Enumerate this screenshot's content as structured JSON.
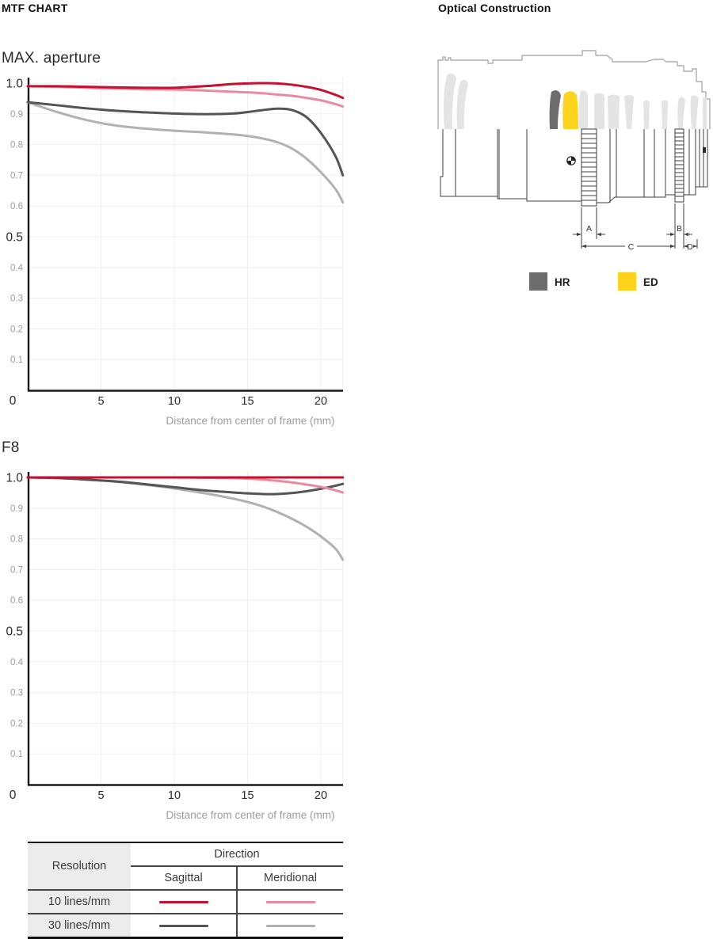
{
  "page": {
    "left_title": "MTF CHART",
    "right_title": "Optical Construction"
  },
  "chart_data": [
    {
      "type": "line",
      "title": "MAX. aperture",
      "xlabel": "Distance from center of frame (mm)",
      "xlim": [
        0,
        21.5
      ],
      "ylim": [
        0,
        1.0
      ],
      "xticks": [
        5,
        10,
        15,
        20
      ],
      "origin_label": "0",
      "yticks_major": [
        1.0,
        0.5
      ],
      "yticks_minor": [
        0.9,
        0.8,
        0.7,
        0.6,
        0.4,
        0.3,
        0.2,
        0.1
      ],
      "grid": true,
      "x": [
        0,
        2,
        4,
        6,
        8,
        10,
        12,
        14,
        15,
        16,
        17,
        18,
        19,
        20,
        21,
        21.5
      ],
      "series": [
        {
          "name": "10 lines/mm Sagittal",
          "color": "#c8102e",
          "values": [
            0.99,
            0.99,
            0.988,
            0.986,
            0.985,
            0.985,
            0.99,
            0.997,
            0.999,
            1.0,
            0.999,
            0.995,
            0.988,
            0.978,
            0.962,
            0.952
          ]
        },
        {
          "name": "10 lines/mm Meridional",
          "color": "#ea8a9e",
          "values": [
            0.99,
            0.988,
            0.985,
            0.982,
            0.98,
            0.979,
            0.976,
            0.972,
            0.97,
            0.967,
            0.963,
            0.959,
            0.952,
            0.944,
            0.932,
            0.924
          ]
        },
        {
          "name": "30 lines/mm Sagittal",
          "color": "#545457",
          "values": [
            0.938,
            0.928,
            0.918,
            0.91,
            0.905,
            0.901,
            0.899,
            0.901,
            0.906,
            0.912,
            0.917,
            0.913,
            0.89,
            0.838,
            0.762,
            0.7
          ]
        },
        {
          "name": "30 lines/mm Meridional",
          "color": "#b1b1b1",
          "values": [
            0.938,
            0.906,
            0.88,
            0.862,
            0.852,
            0.845,
            0.84,
            0.833,
            0.828,
            0.82,
            0.808,
            0.788,
            0.755,
            0.71,
            0.655,
            0.612
          ]
        }
      ]
    },
    {
      "type": "line",
      "title": "F8",
      "xlabel": "Distance from center of frame (mm)",
      "xlim": [
        0,
        21.5
      ],
      "ylim": [
        0,
        1.0
      ],
      "xticks": [
        5,
        10,
        15,
        20
      ],
      "origin_label": "0",
      "yticks_major": [
        1.0,
        0.5
      ],
      "yticks_minor": [
        0.9,
        0.8,
        0.7,
        0.6,
        0.4,
        0.3,
        0.2,
        0.1
      ],
      "grid": true,
      "x": [
        0,
        2,
        4,
        6,
        8,
        10,
        12,
        14,
        15,
        16,
        17,
        18,
        19,
        20,
        21,
        21.5
      ],
      "series": [
        {
          "name": "10 lines/mm Sagittal",
          "color": "#c8102e",
          "values": [
            1.0,
            1.0,
            1.0,
            1.0,
            1.0,
            1.0,
            1.0,
            1.0,
            1.0,
            1.0,
            1.0,
            1.0,
            1.0,
            1.0,
            1.0,
            1.0
          ]
        },
        {
          "name": "10 lines/mm Meridional",
          "color": "#ea8a9e",
          "values": [
            1.0,
            1.0,
            1.0,
            1.0,
            1.0,
            1.0,
            0.999,
            0.998,
            0.996,
            0.993,
            0.989,
            0.984,
            0.977,
            0.969,
            0.958,
            0.951
          ]
        },
        {
          "name": "30 lines/mm Sagittal",
          "color": "#545457",
          "values": [
            1.0,
            0.998,
            0.993,
            0.987,
            0.978,
            0.968,
            0.958,
            0.951,
            0.948,
            0.946,
            0.946,
            0.949,
            0.955,
            0.963,
            0.973,
            0.979
          ]
        },
        {
          "name": "30 lines/mm Meridional",
          "color": "#b1b1b1",
          "values": [
            1.0,
            0.998,
            0.993,
            0.986,
            0.976,
            0.964,
            0.949,
            0.931,
            0.92,
            0.906,
            0.888,
            0.866,
            0.84,
            0.808,
            0.768,
            0.732
          ]
        }
      ]
    }
  ],
  "legend_table": {
    "resolution_header": "Resolution",
    "direction_header": "Direction",
    "columns": [
      "Sagittal",
      "Meridional"
    ],
    "rows": [
      {
        "label": "10 lines/mm",
        "sagittal_color": "#c8102e",
        "meridional_color": "#ea8a9e"
      },
      {
        "label": "30 lines/mm",
        "sagittal_color": "#545457",
        "meridional_color": "#b1b1b1"
      }
    ]
  },
  "optical": {
    "legend": [
      {
        "label": "HR",
        "color": "#6d6d6d"
      },
      {
        "label": "ED",
        "color": "#fdd31c"
      }
    ],
    "dimension_labels": [
      "A",
      "B",
      "C",
      "D"
    ]
  }
}
